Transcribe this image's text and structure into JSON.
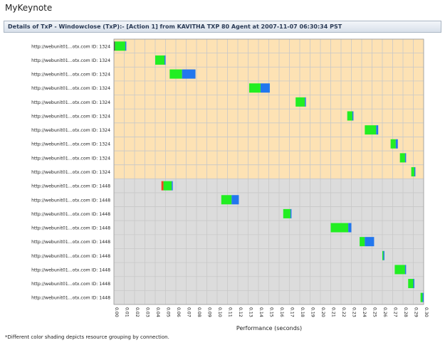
{
  "app": {
    "title": "MyKeynote"
  },
  "header": {
    "text": "Details of TxP - Windowclose (TxP):- [Action 1] from KAVITHA TXP 80 Agent at 2007-11-07 06:30:34 PST"
  },
  "footnote": "*Different color shading depicts resource grouping by connection.",
  "colors": {
    "group1_bg": "#fde2b4",
    "group2_bg": "#dcdcdc",
    "green": "#22ee22",
    "blue": "#2277ee",
    "red": "#ee4422",
    "grid": "#c8c8c8"
  },
  "chart_data": {
    "type": "bar",
    "xlabel": "Performance (seconds)",
    "xlim": [
      0,
      0.3
    ],
    "xticks": [
      "0.00",
      "0.01",
      "0.02",
      "0.03",
      "0.04",
      "0.05",
      "0.06",
      "0.07",
      "0.08",
      "0.09",
      "0.10",
      "0.11",
      "0.12",
      "0.13",
      "0.14",
      "0.15",
      "0.16",
      "0.17",
      "0.18",
      "0.19",
      "0.20",
      "0.21",
      "0.22",
      "0.23",
      "0.24",
      "0.25",
      "0.26",
      "0.27",
      "0.28",
      "0.29",
      "0.30"
    ],
    "groups": [
      {
        "name": "ID: 1324",
        "rows": [
          0,
          9
        ],
        "color": "#fde2b4"
      },
      {
        "name": "ID: 1448",
        "rows": [
          10,
          18
        ],
        "color": "#dcdcdc"
      }
    ],
    "rows": [
      {
        "label": "http://webunit01...otx.com ID: 1324",
        "segments": [
          {
            "start": 0.0,
            "end": 0.001,
            "color": "#555555"
          },
          {
            "start": 0.001,
            "end": 0.011,
            "color": "#22ee22"
          },
          {
            "start": 0.011,
            "end": 0.012,
            "color": "#2277ee"
          }
        ]
      },
      {
        "label": "http://webunit01...otx.com ID: 1324",
        "segments": [
          {
            "start": 0.04,
            "end": 0.049,
            "color": "#22ee22"
          },
          {
            "start": 0.049,
            "end": 0.05,
            "color": "#2277ee"
          }
        ]
      },
      {
        "label": "http://webunit01...otx.com ID: 1324",
        "segments": [
          {
            "start": 0.054,
            "end": 0.066,
            "color": "#22ee22"
          },
          {
            "start": 0.066,
            "end": 0.079,
            "color": "#2277ee"
          }
        ]
      },
      {
        "label": "http://webunit01...otx.com ID: 1324",
        "segments": [
          {
            "start": 0.131,
            "end": 0.142,
            "color": "#22ee22"
          },
          {
            "start": 0.142,
            "end": 0.151,
            "color": "#2277ee"
          }
        ]
      },
      {
        "label": "http://webunit01...otx.com ID: 1324",
        "segments": [
          {
            "start": 0.176,
            "end": 0.185,
            "color": "#22ee22"
          },
          {
            "start": 0.185,
            "end": 0.186,
            "color": "#2277ee"
          }
        ]
      },
      {
        "label": "http://webunit01...otx.com ID: 1324",
        "segments": [
          {
            "start": 0.226,
            "end": 0.231,
            "color": "#22ee22"
          },
          {
            "start": 0.231,
            "end": 0.232,
            "color": "#2277ee"
          }
        ]
      },
      {
        "label": "http://webunit01...otx.com ID: 1324",
        "segments": [
          {
            "start": 0.243,
            "end": 0.254,
            "color": "#22ee22"
          },
          {
            "start": 0.254,
            "end": 0.256,
            "color": "#2277ee"
          }
        ]
      },
      {
        "label": "http://webunit01...otx.com ID: 1324",
        "segments": [
          {
            "start": 0.268,
            "end": 0.273,
            "color": "#22ee22"
          },
          {
            "start": 0.273,
            "end": 0.275,
            "color": "#2277ee"
          }
        ]
      },
      {
        "label": "http://webunit01...otx.com ID: 1324",
        "segments": [
          {
            "start": 0.277,
            "end": 0.282,
            "color": "#22ee22"
          },
          {
            "start": 0.282,
            "end": 0.283,
            "color": "#2277ee"
          }
        ]
      },
      {
        "label": "http://webunit01...otx.com ID: 1324",
        "segments": [
          {
            "start": 0.288,
            "end": 0.291,
            "color": "#22ee22"
          },
          {
            "start": 0.291,
            "end": 0.292,
            "color": "#2277ee"
          }
        ]
      },
      {
        "label": "http://webunit01...otx.com ID: 1448",
        "segments": [
          {
            "start": 0.046,
            "end": 0.048,
            "color": "#ee4422"
          },
          {
            "start": 0.048,
            "end": 0.056,
            "color": "#22ee22"
          },
          {
            "start": 0.056,
            "end": 0.057,
            "color": "#2277ee"
          }
        ]
      },
      {
        "label": "http://webunit01...otx.com ID: 1448",
        "segments": [
          {
            "start": 0.104,
            "end": 0.114,
            "color": "#22ee22"
          },
          {
            "start": 0.114,
            "end": 0.121,
            "color": "#2277ee"
          }
        ]
      },
      {
        "label": "http://webunit01...otx.com ID: 1448",
        "segments": [
          {
            "start": 0.164,
            "end": 0.171,
            "color": "#22ee22"
          },
          {
            "start": 0.171,
            "end": 0.172,
            "color": "#2277ee"
          }
        ]
      },
      {
        "label": "http://webunit01...otx.com ID: 1448",
        "segments": [
          {
            "start": 0.21,
            "end": 0.227,
            "color": "#22ee22"
          },
          {
            "start": 0.227,
            "end": 0.23,
            "color": "#2277ee"
          }
        ]
      },
      {
        "label": "http://webunit01...otx.com ID: 1448",
        "segments": [
          {
            "start": 0.238,
            "end": 0.243,
            "color": "#22ee22"
          },
          {
            "start": 0.243,
            "end": 0.252,
            "color": "#2277ee"
          }
        ]
      },
      {
        "label": "http://webunit01...otx.com ID: 1448",
        "segments": [
          {
            "start": 0.26,
            "end": 0.261,
            "color": "#22ee22"
          },
          {
            "start": 0.261,
            "end": 0.262,
            "color": "#2277ee"
          }
        ]
      },
      {
        "label": "http://webunit01...otx.com ID: 1448",
        "segments": [
          {
            "start": 0.272,
            "end": 0.282,
            "color": "#22ee22"
          },
          {
            "start": 0.282,
            "end": 0.283,
            "color": "#2277ee"
          }
        ]
      },
      {
        "label": "http://webunit01...otx.com ID: 1448",
        "segments": [
          {
            "start": 0.285,
            "end": 0.29,
            "color": "#22ee22"
          },
          {
            "start": 0.29,
            "end": 0.291,
            "color": "#2277ee"
          }
        ]
      },
      {
        "label": "http://webunit01...otx.com ID: 1448",
        "segments": [
          {
            "start": 0.297,
            "end": 0.299,
            "color": "#22ee22"
          },
          {
            "start": 0.299,
            "end": 0.3,
            "color": "#2277ee"
          }
        ]
      }
    ]
  }
}
